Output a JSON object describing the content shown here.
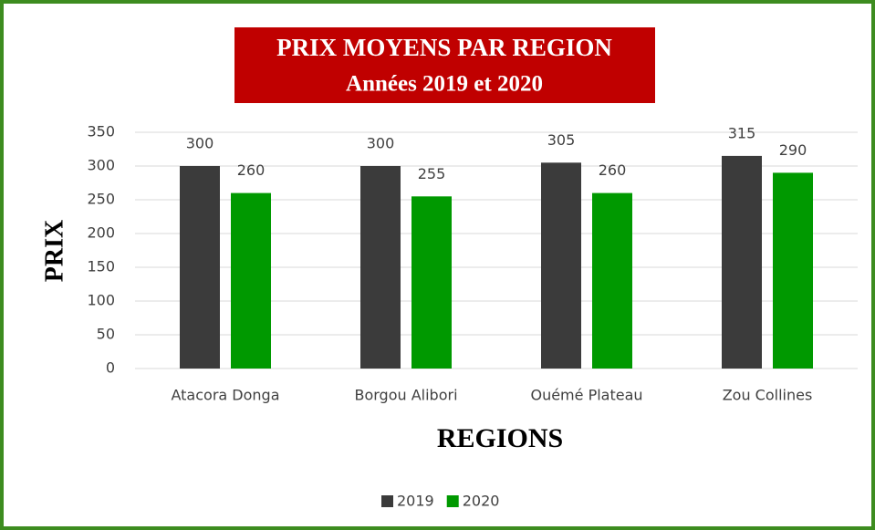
{
  "chart_data": {
    "type": "bar",
    "title": "PRIX MOYENS PAR REGION",
    "subtitle": "Années 2019 et 2020",
    "x_label": "REGIONS",
    "y_label": "PRIX",
    "categories": [
      "Atacora Donga",
      "Borgou Alibori",
      "Ouémé Plateau",
      "Zou Collines"
    ],
    "series": [
      {
        "name": "2019",
        "color": "#3b3b3b",
        "values": [
          300,
          300,
          305,
          315
        ]
      },
      {
        "name": "2020",
        "color": "#009900",
        "values": [
          260,
          255,
          260,
          290
        ]
      }
    ],
    "ylim": [
      0,
      350
    ],
    "yticks": [
      0,
      50,
      100,
      150,
      200,
      250,
      300,
      350
    ],
    "grid": true,
    "legend": "bottom"
  }
}
